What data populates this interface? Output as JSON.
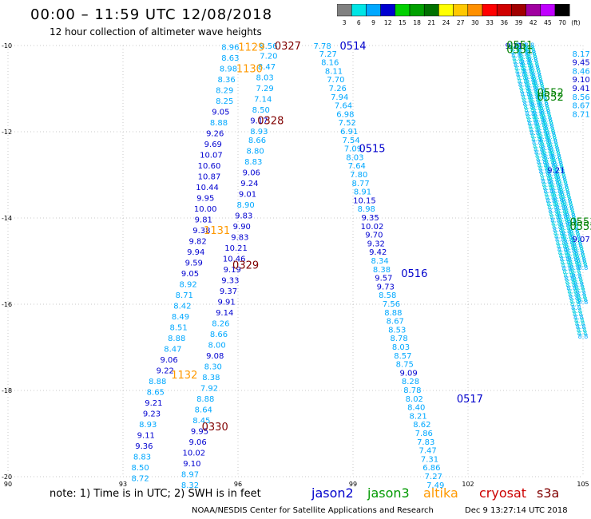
{
  "header": {
    "title": "00:00 – 11:59 UTC 12/08/2018",
    "subtitle": "12 hour collection of altimeter wave heights"
  },
  "color_scale": {
    "unit": "(ft)",
    "bins": [
      {
        "label": "3",
        "color": "#808080"
      },
      {
        "label": "6",
        "color": "#00e5e5"
      },
      {
        "label": "9",
        "color": "#00a8ff"
      },
      {
        "label": "12",
        "color": "#0000d0"
      },
      {
        "label": "15",
        "color": "#00d000"
      },
      {
        "label": "18",
        "color": "#00a000"
      },
      {
        "label": "21",
        "color": "#007000"
      },
      {
        "label": "24",
        "color": "#ffff00"
      },
      {
        "label": "27",
        "color": "#ffc800"
      },
      {
        "label": "30",
        "color": "#ff9000"
      },
      {
        "label": "33",
        "color": "#ff0000"
      },
      {
        "label": "36",
        "color": "#d00000"
      },
      {
        "label": "39",
        "color": "#a00000"
      },
      {
        "label": "42",
        "color": "#a000a0"
      },
      {
        "label": "45",
        "color": "#c000ff"
      },
      {
        "label": "70",
        "color": "#000000"
      }
    ]
  },
  "map": {
    "lat_ticks": [
      "-10",
      "-12",
      "-14",
      "-16",
      "-18",
      "-20"
    ],
    "lon_ticks": [
      "90",
      "93",
      "96",
      "99",
      "102",
      "105"
    ],
    "passes": [
      {
        "time": "0327",
        "color": "#800000",
        "lat": -10.02,
        "lon": 97.3
      },
      {
        "time": "0328",
        "color": "#800000",
        "lat": -11.75,
        "lon": 96.85
      },
      {
        "time": "0329",
        "color": "#800000",
        "lat": -15.1,
        "lon": 96.2
      },
      {
        "time": "0330",
        "color": "#800000",
        "lat": -18.85,
        "lon": 95.4
      },
      {
        "time": "0514",
        "color": "#0000cc",
        "lat": -10.02,
        "lon": 99.0
      },
      {
        "time": "0515",
        "color": "#0000cc",
        "lat": -12.4,
        "lon": 99.5
      },
      {
        "time": "0516",
        "color": "#0000cc",
        "lat": -15.3,
        "lon": 100.6
      },
      {
        "time": "0517",
        "color": "#0000cc",
        "lat": -18.2,
        "lon": 102.05
      },
      {
        "time": "0551",
        "color": "#008000",
        "lat": -10.0,
        "lon": 103.35
      },
      {
        "time": "0551",
        "color": "#008000",
        "lat": -10.1,
        "lon": 103.35
      },
      {
        "time": "0552",
        "color": "#008000",
        "lat": -11.1,
        "lon": 104.15
      },
      {
        "time": "0552",
        "color": "#008000",
        "lat": -11.2,
        "lon": 104.15
      },
      {
        "time": "0553",
        "color": "#008000",
        "lat": -14.1,
        "lon": 105.0
      },
      {
        "time": "0553",
        "color": "#008000",
        "lat": -14.2,
        "lon": 105.0
      },
      {
        "time": "1129",
        "color": "#ff9900",
        "lat": -10.05,
        "lon": 96.35
      },
      {
        "time": "1130",
        "color": "#ff9900",
        "lat": -10.55,
        "lon": 96.3
      },
      {
        "time": "1131",
        "color": "#ff9900",
        "lat": -14.3,
        "lon": 95.45
      },
      {
        "time": "1132",
        "color": "#ff9900",
        "lat": -17.65,
        "lon": 94.6
      }
    ],
    "readings": [
      {
        "v": "8.96",
        "lat": -10.05,
        "lon": 95.8,
        "c": "#00a8ff"
      },
      {
        "v": "8.63",
        "lat": -10.3,
        "lon": 95.8,
        "c": "#00a8ff"
      },
      {
        "v": "8.98",
        "lat": -10.55,
        "lon": 95.75,
        "c": "#00a8ff"
      },
      {
        "v": "8.36",
        "lat": -10.8,
        "lon": 95.7,
        "c": "#00a8ff"
      },
      {
        "v": "8.29",
        "lat": -11.05,
        "lon": 95.65,
        "c": "#00a8ff"
      },
      {
        "v": "8.25",
        "lat": -11.3,
        "lon": 95.65,
        "c": "#00a8ff"
      },
      {
        "v": "9.05",
        "lat": -11.55,
        "lon": 95.55,
        "c": "#0000d0"
      },
      {
        "v": "8.88",
        "lat": -11.8,
        "lon": 95.5,
        "c": "#00a8ff"
      },
      {
        "v": "9.26",
        "lat": -12.05,
        "lon": 95.4,
        "c": "#0000d0"
      },
      {
        "v": "9.69",
        "lat": -12.3,
        "lon": 95.35,
        "c": "#0000d0"
      },
      {
        "v": "10.07",
        "lat": -12.55,
        "lon": 95.3,
        "c": "#0000d0"
      },
      {
        "v": "10.60",
        "lat": -12.8,
        "lon": 95.25,
        "c": "#0000d0"
      },
      {
        "v": "10.87",
        "lat": -13.05,
        "lon": 95.25,
        "c": "#0000d0"
      },
      {
        "v": "10.44",
        "lat": -13.3,
        "lon": 95.2,
        "c": "#0000d0"
      },
      {
        "v": "9.95",
        "lat": -13.55,
        "lon": 95.15,
        "c": "#0000d0"
      },
      {
        "v": "10.00",
        "lat": -13.8,
        "lon": 95.15,
        "c": "#0000d0"
      },
      {
        "v": "9.81",
        "lat": -14.05,
        "lon": 95.1,
        "c": "#0000d0"
      },
      {
        "v": "9.38",
        "lat": -14.3,
        "lon": 95.05,
        "c": "#0000d0"
      },
      {
        "v": "9.82",
        "lat": -14.55,
        "lon": 94.95,
        "c": "#0000d0"
      },
      {
        "v": "9.94",
        "lat": -14.8,
        "lon": 94.9,
        "c": "#0000d0"
      },
      {
        "v": "9.59",
        "lat": -15.05,
        "lon": 94.85,
        "c": "#0000d0"
      },
      {
        "v": "9.05",
        "lat": -15.3,
        "lon": 94.75,
        "c": "#0000d0"
      },
      {
        "v": "8.92",
        "lat": -15.55,
        "lon": 94.7,
        "c": "#00a8ff"
      },
      {
        "v": "8.71",
        "lat": -15.8,
        "lon": 94.6,
        "c": "#00a8ff"
      },
      {
        "v": "8.42",
        "lat": -16.05,
        "lon": 94.55,
        "c": "#00a8ff"
      },
      {
        "v": "8.49",
        "lat": -16.3,
        "lon": 94.5,
        "c": "#00a8ff"
      },
      {
        "v": "8.51",
        "lat": -16.55,
        "lon": 94.45,
        "c": "#00a8ff"
      },
      {
        "v": "8.88",
        "lat": -16.8,
        "lon": 94.4,
        "c": "#00a8ff"
      },
      {
        "v": "8.47",
        "lat": -17.05,
        "lon": 94.3,
        "c": "#00a8ff"
      },
      {
        "v": "9.06",
        "lat": -17.3,
        "lon": 94.2,
        "c": "#0000d0"
      },
      {
        "v": "9.22",
        "lat": -17.55,
        "lon": 94.1,
        "c": "#0000d0"
      },
      {
        "v": "8.88",
        "lat": -17.8,
        "lon": 93.9,
        "c": "#00a8ff"
      },
      {
        "v": "8.65",
        "lat": -18.05,
        "lon": 93.85,
        "c": "#00a8ff"
      },
      {
        "v": "9.21",
        "lat": -18.3,
        "lon": 93.8,
        "c": "#0000d0"
      },
      {
        "v": "9.23",
        "lat": -18.55,
        "lon": 93.75,
        "c": "#0000d0"
      },
      {
        "v": "8.93",
        "lat": -18.8,
        "lon": 93.65,
        "c": "#00a8ff"
      },
      {
        "v": "9.11",
        "lat": -19.05,
        "lon": 93.6,
        "c": "#0000d0"
      },
      {
        "v": "9.36",
        "lat": -19.3,
        "lon": 93.55,
        "c": "#0000d0"
      },
      {
        "v": "8.83",
        "lat": -19.55,
        "lon": 93.5,
        "c": "#00a8ff"
      },
      {
        "v": "8.50",
        "lat": -19.8,
        "lon": 93.45,
        "c": "#00a8ff"
      },
      {
        "v": "8.72",
        "lat": -20.05,
        "lon": 93.45,
        "c": "#00a8ff"
      },
      {
        "v": "8.56",
        "lat": -10.02,
        "lon": 96.8,
        "c": "#00a8ff"
      },
      {
        "v": "7.20",
        "lat": -10.25,
        "lon": 96.8,
        "c": "#00a8ff"
      },
      {
        "v": "8.47",
        "lat": -10.5,
        "lon": 96.75,
        "c": "#00a8ff"
      },
      {
        "v": "8.03",
        "lat": -10.75,
        "lon": 96.7,
        "c": "#00a8ff"
      },
      {
        "v": "7.29",
        "lat": -11.0,
        "lon": 96.7,
        "c": "#00a8ff"
      },
      {
        "v": "7.14",
        "lat": -11.25,
        "lon": 96.65,
        "c": "#00a8ff"
      },
      {
        "v": "8.50",
        "lat": -11.5,
        "lon": 96.6,
        "c": "#00a8ff"
      },
      {
        "v": "9.17",
        "lat": -11.75,
        "lon": 96.55,
        "c": "#0000d0"
      },
      {
        "v": "8.93",
        "lat": -12.0,
        "lon": 96.55,
        "c": "#00a8ff"
      },
      {
        "v": "8.66",
        "lat": -12.2,
        "lon": 96.5,
        "c": "#00a8ff"
      },
      {
        "v": "8.80",
        "lat": -12.45,
        "lon": 96.45,
        "c": "#00a8ff"
      },
      {
        "v": "8.83",
        "lat": -12.7,
        "lon": 96.4,
        "c": "#00a8ff"
      },
      {
        "v": "9.06",
        "lat": -12.95,
        "lon": 96.35,
        "c": "#0000d0"
      },
      {
        "v": "9.24",
        "lat": -13.2,
        "lon": 96.3,
        "c": "#0000d0"
      },
      {
        "v": "9.01",
        "lat": -13.45,
        "lon": 96.25,
        "c": "#0000d0"
      },
      {
        "v": "8.90",
        "lat": -13.7,
        "lon": 96.2,
        "c": "#00a8ff"
      },
      {
        "v": "9.83",
        "lat": -13.95,
        "lon": 96.15,
        "c": "#0000d0"
      },
      {
        "v": "9.90",
        "lat": -14.2,
        "lon": 96.1,
        "c": "#0000d0"
      },
      {
        "v": "9.83",
        "lat": -14.45,
        "lon": 96.05,
        "c": "#0000d0"
      },
      {
        "v": "10.21",
        "lat": -14.7,
        "lon": 95.95,
        "c": "#0000d0"
      },
      {
        "v": "10.46",
        "lat": -14.95,
        "lon": 95.9,
        "c": "#0000d0"
      },
      {
        "v": "9.19",
        "lat": -15.2,
        "lon": 95.85,
        "c": "#0000d0"
      },
      {
        "v": "9.33",
        "lat": -15.45,
        "lon": 95.8,
        "c": "#0000d0"
      },
      {
        "v": "9.37",
        "lat": -15.7,
        "lon": 95.75,
        "c": "#0000d0"
      },
      {
        "v": "9.91",
        "lat": -15.95,
        "lon": 95.7,
        "c": "#0000d0"
      },
      {
        "v": "9.14",
        "lat": -16.2,
        "lon": 95.65,
        "c": "#0000d0"
      },
      {
        "v": "8.26",
        "lat": -16.45,
        "lon": 95.55,
        "c": "#00a8ff"
      },
      {
        "v": "8.66",
        "lat": -16.7,
        "lon": 95.5,
        "c": "#00a8ff"
      },
      {
        "v": "8.00",
        "lat": -16.95,
        "lon": 95.45,
        "c": "#00a8ff"
      },
      {
        "v": "9.08",
        "lat": -17.2,
        "lon": 95.4,
        "c": "#0000d0"
      },
      {
        "v": "8.30",
        "lat": -17.45,
        "lon": 95.35,
        "c": "#00a8ff"
      },
      {
        "v": "8.38",
        "lat": -17.7,
        "lon": 95.3,
        "c": "#00a8ff"
      },
      {
        "v": "7.92",
        "lat": -17.95,
        "lon": 95.25,
        "c": "#00a8ff"
      },
      {
        "v": "8.88",
        "lat": -18.2,
        "lon": 95.15,
        "c": "#00a8ff"
      },
      {
        "v": "8.64",
        "lat": -18.45,
        "lon": 95.1,
        "c": "#00a8ff"
      },
      {
        "v": "8.45",
        "lat": -18.7,
        "lon": 95.05,
        "c": "#00a8ff"
      },
      {
        "v": "9.95",
        "lat": -18.95,
        "lon": 95.0,
        "c": "#0000d0"
      },
      {
        "v": "9.06",
        "lat": -19.2,
        "lon": 94.95,
        "c": "#0000d0"
      },
      {
        "v": "10.02",
        "lat": -19.45,
        "lon": 94.85,
        "c": "#0000d0"
      },
      {
        "v": "9.10",
        "lat": -19.7,
        "lon": 94.8,
        "c": "#0000d0"
      },
      {
        "v": "8.97",
        "lat": -19.95,
        "lon": 94.75,
        "c": "#00a8ff"
      },
      {
        "v": "8.32",
        "lat": -20.2,
        "lon": 94.75,
        "c": "#00a8ff"
      },
      {
        "v": "7.78",
        "lat": -10.02,
        "lon": 98.2,
        "c": "#00a8ff"
      },
      {
        "v": "7.27",
        "lat": -10.2,
        "lon": 98.35,
        "c": "#00a8ff"
      },
      {
        "v": "8.16",
        "lat": -10.4,
        "lon": 98.4,
        "c": "#00a8ff"
      },
      {
        "v": "8.11",
        "lat": -10.6,
        "lon": 98.5,
        "c": "#00a8ff"
      },
      {
        "v": "7.70",
        "lat": -10.8,
        "lon": 98.55,
        "c": "#00a8ff"
      },
      {
        "v": "7.26",
        "lat": -11.0,
        "lon": 98.6,
        "c": "#00a8ff"
      },
      {
        "v": "7.94",
        "lat": -11.2,
        "lon": 98.65,
        "c": "#00a8ff"
      },
      {
        "v": "7.64",
        "lat": -11.4,
        "lon": 98.75,
        "c": "#00a8ff"
      },
      {
        "v": "6.98",
        "lat": -11.6,
        "lon": 98.8,
        "c": "#00a8ff"
      },
      {
        "v": "7.52",
        "lat": -11.8,
        "lon": 98.85,
        "c": "#00a8ff"
      },
      {
        "v": "6.91",
        "lat": -12.0,
        "lon": 98.9,
        "c": "#00a8ff"
      },
      {
        "v": "7.54",
        "lat": -12.2,
        "lon": 98.95,
        "c": "#00a8ff"
      },
      {
        "v": "7.09",
        "lat": -12.4,
        "lon": 99.0,
        "c": "#00a8ff"
      },
      {
        "v": "8.03",
        "lat": -12.6,
        "lon": 99.05,
        "c": "#00a8ff"
      },
      {
        "v": "7.64",
        "lat": -12.8,
        "lon": 99.1,
        "c": "#00a8ff"
      },
      {
        "v": "7.80",
        "lat": -13.0,
        "lon": 99.15,
        "c": "#00a8ff"
      },
      {
        "v": "8.77",
        "lat": -13.2,
        "lon": 99.2,
        "c": "#00a8ff"
      },
      {
        "v": "8.91",
        "lat": -13.4,
        "lon": 99.25,
        "c": "#00a8ff"
      },
      {
        "v": "10.15",
        "lat": -13.6,
        "lon": 99.3,
        "c": "#0000d0"
      },
      {
        "v": "8.98",
        "lat": -13.8,
        "lon": 99.35,
        "c": "#00a8ff"
      },
      {
        "v": "9.35",
        "lat": -14.0,
        "lon": 99.45,
        "c": "#0000d0"
      },
      {
        "v": "10.02",
        "lat": -14.2,
        "lon": 99.5,
        "c": "#0000d0"
      },
      {
        "v": "9.70",
        "lat": -14.4,
        "lon": 99.55,
        "c": "#0000d0"
      },
      {
        "v": "9.32",
        "lat": -14.6,
        "lon": 99.6,
        "c": "#0000d0"
      },
      {
        "v": "9.42",
        "lat": -14.8,
        "lon": 99.65,
        "c": "#0000d0"
      },
      {
        "v": "8.34",
        "lat": -15.0,
        "lon": 99.7,
        "c": "#00a8ff"
      },
      {
        "v": "8.38",
        "lat": -15.2,
        "lon": 99.75,
        "c": "#00a8ff"
      },
      {
        "v": "9.57",
        "lat": -15.4,
        "lon": 99.8,
        "c": "#0000d0"
      },
      {
        "v": "9.73",
        "lat": -15.6,
        "lon": 99.85,
        "c": "#0000d0"
      },
      {
        "v": "8.58",
        "lat": -15.8,
        "lon": 99.9,
        "c": "#00a8ff"
      },
      {
        "v": "7.56",
        "lat": -16.0,
        "lon": 100.0,
        "c": "#00a8ff"
      },
      {
        "v": "8.88",
        "lat": -16.2,
        "lon": 100.05,
        "c": "#00a8ff"
      },
      {
        "v": "8.67",
        "lat": -16.4,
        "lon": 100.1,
        "c": "#00a8ff"
      },
      {
        "v": "8.53",
        "lat": -16.6,
        "lon": 100.15,
        "c": "#00a8ff"
      },
      {
        "v": "8.78",
        "lat": -16.8,
        "lon": 100.2,
        "c": "#00a8ff"
      },
      {
        "v": "8.03",
        "lat": -17.0,
        "lon": 100.25,
        "c": "#00a8ff"
      },
      {
        "v": "8.57",
        "lat": -17.2,
        "lon": 100.3,
        "c": "#00a8ff"
      },
      {
        "v": "8.75",
        "lat": -17.4,
        "lon": 100.35,
        "c": "#00a8ff"
      },
      {
        "v": "9.09",
        "lat": -17.6,
        "lon": 100.45,
        "c": "#0000d0"
      },
      {
        "v": "8.28",
        "lat": -17.8,
        "lon": 100.5,
        "c": "#00a8ff"
      },
      {
        "v": "8.78",
        "lat": -18.0,
        "lon": 100.55,
        "c": "#00a8ff"
      },
      {
        "v": "8.02",
        "lat": -18.2,
        "lon": 100.6,
        "c": "#00a8ff"
      },
      {
        "v": "8.40",
        "lat": -18.4,
        "lon": 100.65,
        "c": "#00a8ff"
      },
      {
        "v": "8.21",
        "lat": -18.6,
        "lon": 100.7,
        "c": "#00a8ff"
      },
      {
        "v": "8.62",
        "lat": -18.8,
        "lon": 100.8,
        "c": "#00a8ff"
      },
      {
        "v": "7.86",
        "lat": -19.0,
        "lon": 100.85,
        "c": "#00a8ff"
      },
      {
        "v": "7.83",
        "lat": -19.2,
        "lon": 100.9,
        "c": "#00a8ff"
      },
      {
        "v": "7.47",
        "lat": -19.4,
        "lon": 100.95,
        "c": "#00a8ff"
      },
      {
        "v": "7.31",
        "lat": -19.6,
        "lon": 101.0,
        "c": "#00a8ff"
      },
      {
        "v": "6.86",
        "lat": -19.8,
        "lon": 101.05,
        "c": "#00a8ff"
      },
      {
        "v": "7.27",
        "lat": -20.0,
        "lon": 101.1,
        "c": "#00a8ff"
      },
      {
        "v": "7.49",
        "lat": -20.2,
        "lon": 101.15,
        "c": "#00a8ff"
      },
      {
        "v": "9.11",
        "lat": -10.02,
        "lon": 103.2,
        "c": "#0000d0"
      },
      {
        "v": "9.21",
        "lat": -12.9,
        "lon": 104.3,
        "c": "#0000d0"
      },
      {
        "v": "9.07",
        "lat": -14.5,
        "lon": 104.95,
        "c": "#0000d0"
      },
      {
        "v": "8.17",
        "lat": -10.2,
        "lon": 104.95,
        "c": "#00a8ff"
      },
      {
        "v": "9.45",
        "lat": -10.4,
        "lon": 104.95,
        "c": "#0000d0"
      },
      {
        "v": "8.46",
        "lat": -10.6,
        "lon": 104.95,
        "c": "#00a8ff"
      },
      {
        "v": "9.10",
        "lat": -10.8,
        "lon": 104.95,
        "c": "#0000d0"
      },
      {
        "v": "9.41",
        "lat": -11.0,
        "lon": 104.95,
        "c": "#0000d0"
      },
      {
        "v": "8.56",
        "lat": -11.2,
        "lon": 104.95,
        "c": "#00a8ff"
      },
      {
        "v": "8.67",
        "lat": -11.4,
        "lon": 104.95,
        "c": "#00a8ff"
      },
      {
        "v": "8.71",
        "lat": -11.6,
        "lon": 104.95,
        "c": "#00a8ff"
      }
    ]
  },
  "footer": {
    "note": "note: 1) Time is in UTC; 2) SWH is in feet",
    "satellites": [
      {
        "name": "jason2",
        "color": "#0000cc"
      },
      {
        "name": "jason3",
        "color": "#009900"
      },
      {
        "name": "altika",
        "color": "#ff9900"
      },
      {
        "name": "cryosat",
        "color": "#cc0000"
      },
      {
        "name": "s3a",
        "color": "#800000"
      }
    ],
    "credit": "NOAA/NESDIS Center for Satellite Applications and Research",
    "timestamp": "Dec  9 13:27:14 UTC 2018"
  }
}
